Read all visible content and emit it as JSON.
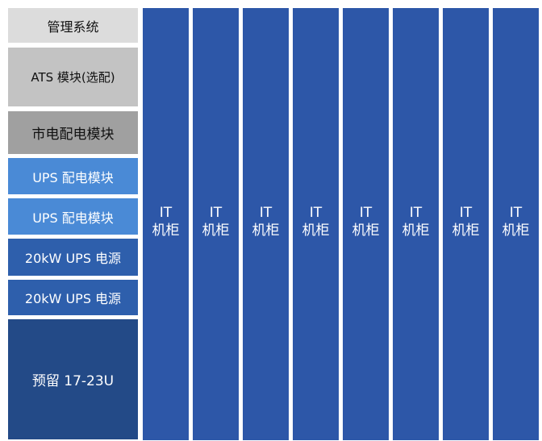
{
  "stack": [
    {
      "label": "管理系统",
      "bg": "#dcdcdc",
      "fg": "#111111"
    },
    {
      "label": "ATS 模块(选配)",
      "bg": "#c3c3c3",
      "fg": "#111111"
    },
    {
      "label": "市电配电模块",
      "bg": "#a0a0a0",
      "fg": "#111111"
    },
    {
      "label": "UPS 配电模块",
      "bg": "#4a8ad6",
      "fg": "#ffffff"
    },
    {
      "label": "UPS 配电模块",
      "bg": "#4a8ad6",
      "fg": "#ffffff"
    },
    {
      "label": "20kW UPS 电源",
      "bg": "#2e5fac",
      "fg": "#ffffff"
    },
    {
      "label": "20kW UPS 电源",
      "bg": "#2e5fac",
      "fg": "#ffffff"
    },
    {
      "label": "预留 17-23U",
      "bg": "#234a87",
      "fg": "#ffffff"
    }
  ],
  "racks": [
    {
      "line1": "IT",
      "line2": "机柜"
    },
    {
      "line1": "IT",
      "line2": "机柜"
    },
    {
      "line1": "IT",
      "line2": "机柜"
    },
    {
      "line1": "IT",
      "line2": "机柜"
    },
    {
      "line1": "IT",
      "line2": "机柜"
    },
    {
      "line1": "IT",
      "line2": "机柜"
    },
    {
      "line1": "IT",
      "line2": "机柜"
    },
    {
      "line1": "IT",
      "line2": "机柜"
    }
  ],
  "colors": {
    "rack": "#2d57a8",
    "background": "#ffffff"
  }
}
